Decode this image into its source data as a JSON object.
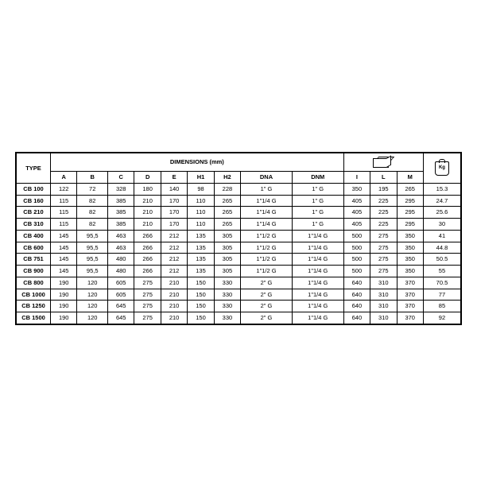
{
  "labels": {
    "type": "TYPE",
    "dimensions": "DIMENSIONS (mm)",
    "kg": "Kg"
  },
  "columns": {
    "A": "A",
    "B": "B",
    "C": "C",
    "D": "D",
    "E": "E",
    "H1": "H1",
    "H2": "H2",
    "DNA": "DNA",
    "DNM": "DNM",
    "I": "I",
    "L": "L",
    "M": "M"
  },
  "rows": [
    {
      "type": "CB 100",
      "A": "122",
      "B": "72",
      "C": "328",
      "D": "180",
      "E": "140",
      "H1": "98",
      "H2": "228",
      "DNA": "1\" G",
      "DNM": "1\" G",
      "I": "350",
      "L": "195",
      "M": "265",
      "kg": "15.3",
      "group": 0
    },
    {
      "type": "CB 160",
      "A": "115",
      "B": "82",
      "C": "385",
      "D": "210",
      "E": "170",
      "H1": "110",
      "H2": "265",
      "DNA": "1\"1/4 G",
      "DNM": "1\" G",
      "I": "405",
      "L": "225",
      "M": "295",
      "kg": "24.7",
      "group": 0
    },
    {
      "type": "CB 210",
      "A": "115",
      "B": "82",
      "C": "385",
      "D": "210",
      "E": "170",
      "H1": "110",
      "H2": "265",
      "DNA": "1\"1/4 G",
      "DNM": "1\" G",
      "I": "405",
      "L": "225",
      "M": "295",
      "kg": "25.6",
      "group": 0
    },
    {
      "type": "CB 310",
      "A": "115",
      "B": "82",
      "C": "385",
      "D": "210",
      "E": "170",
      "H1": "110",
      "H2": "265",
      "DNA": "1\"1/4 G",
      "DNM": "1\" G",
      "I": "405",
      "L": "225",
      "M": "295",
      "kg": "30",
      "group": 0
    },
    {
      "type": "CB 400",
      "A": "145",
      "B": "95,5",
      "C": "463",
      "D": "266",
      "E": "212",
      "H1": "135",
      "H2": "305",
      "DNA": "1\"1/2 G",
      "DNM": "1\"1/4 G",
      "I": "500",
      "L": "275",
      "M": "350",
      "kg": "41",
      "group": 1
    },
    {
      "type": "CB 600",
      "A": "145",
      "B": "95,5",
      "C": "463",
      "D": "266",
      "E": "212",
      "H1": "135",
      "H2": "305",
      "DNA": "1\"1/2 G",
      "DNM": "1\"1/4 G",
      "I": "500",
      "L": "275",
      "M": "350",
      "kg": "44.8",
      "group": 1
    },
    {
      "type": "CB 751",
      "A": "145",
      "B": "95,5",
      "C": "480",
      "D": "266",
      "E": "212",
      "H1": "135",
      "H2": "305",
      "DNA": "1\"1/2 G",
      "DNM": "1\"1/4 G",
      "I": "500",
      "L": "275",
      "M": "350",
      "kg": "50.5",
      "group": 1
    },
    {
      "type": "CB 900",
      "A": "145",
      "B": "95,5",
      "C": "480",
      "D": "266",
      "E": "212",
      "H1": "135",
      "H2": "305",
      "DNA": "1\"1/2 G",
      "DNM": "1\"1/4 G",
      "I": "500",
      "L": "275",
      "M": "350",
      "kg": "55",
      "group": 1
    },
    {
      "type": "CB 800",
      "A": "190",
      "B": "120",
      "C": "605",
      "D": "275",
      "E": "210",
      "H1": "150",
      "H2": "330",
      "DNA": "2\" G",
      "DNM": "1\"1/4 G",
      "I": "640",
      "L": "310",
      "M": "370",
      "kg": "70.5",
      "group": 2
    },
    {
      "type": "CB 1000",
      "A": "190",
      "B": "120",
      "C": "605",
      "D": "275",
      "E": "210",
      "H1": "150",
      "H2": "330",
      "DNA": "2\" G",
      "DNM": "1\"1/4 G",
      "I": "640",
      "L": "310",
      "M": "370",
      "kg": "77",
      "group": 2
    },
    {
      "type": "CB 1250",
      "A": "190",
      "B": "120",
      "C": "645",
      "D": "275",
      "E": "210",
      "H1": "150",
      "H2": "330",
      "DNA": "2\" G",
      "DNM": "1\"1/4 G",
      "I": "640",
      "L": "310",
      "M": "370",
      "kg": "85",
      "group": 2
    },
    {
      "type": "CB 1500",
      "A": "190",
      "B": "120",
      "C": "645",
      "D": "275",
      "E": "210",
      "H1": "150",
      "H2": "330",
      "DNA": "2\" G",
      "DNM": "1\"1/4 G",
      "I": "640",
      "L": "310",
      "M": "370",
      "kg": "92",
      "group": 2
    }
  ]
}
